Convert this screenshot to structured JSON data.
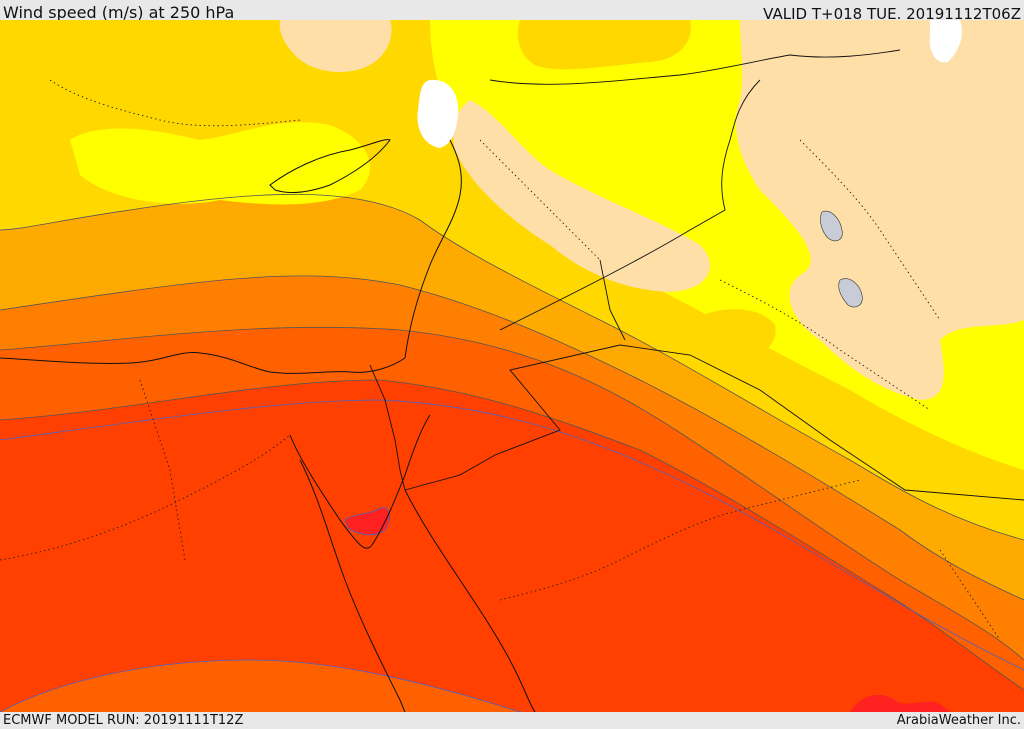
{
  "header": {
    "title": "Wind speed (m/s) at 250 hPa",
    "valid_time": "VALID T+018 TUE. 20191112T06Z"
  },
  "footer": {
    "model_run": "ECMWF MODEL RUN: 20191111T12Z",
    "credit": "ArabiaWeather Inc."
  },
  "map": {
    "field": "wind speed",
    "level_hpa": 250,
    "units": "m/s",
    "colors": {
      "very_low": "#ffffff",
      "low": "#ffdfa8",
      "lowmid": "#ffff00",
      "mid": "#ffd800",
      "midhigh": "#ffaa00",
      "high": "#ff8000",
      "higher": "#ff6000",
      "highest": "#ff4000",
      "peak": "#ff2020",
      "water_gray": "#c8ccd6"
    }
  }
}
